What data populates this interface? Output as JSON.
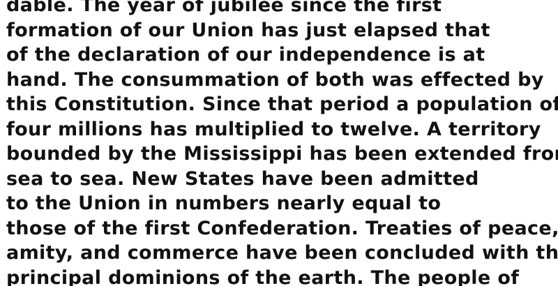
{
  "document": {
    "lines": [
      "dable. The year of jubilee since the first",
      "formation of our Union has just elapsed that",
      "of the declaration of our independence is at",
      "hand. The consummation of both was effected by",
      "this Constitution. Since that period a population of",
      "four millions has multiplied to twelve. A territory",
      "bounded by the Mississippi has been extended from",
      "sea to sea. New States have been admitted",
      "to the Union in numbers nearly equal to",
      "those of the first Confederation. Treaties of peace,",
      "amity, and commerce have been concluded with the",
      "principal dominions of the earth. The people of"
    ]
  }
}
